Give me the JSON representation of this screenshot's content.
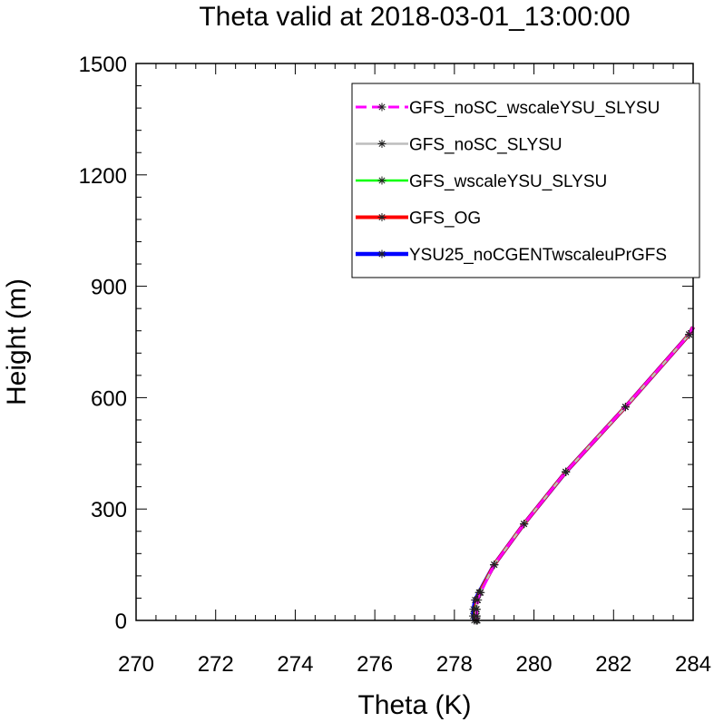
{
  "chart_data": {
    "type": "line",
    "title": "Theta valid at 2018-03-01_13:00:00",
    "xlabel": "Theta (K)",
    "ylabel": "Height (m)",
    "xlim": [
      270,
      284
    ],
    "ylim": [
      0,
      1500
    ],
    "xticks": [
      "270",
      "272",
      "274",
      "276",
      "278",
      "280",
      "282",
      "284"
    ],
    "yticks": [
      "0",
      "300",
      "600",
      "900",
      "1200",
      "1500"
    ],
    "legend_position": "top-right",
    "series": [
      {
        "name": "YSU25_noCGENTwscaleuPrGFS",
        "color": "#0000ff",
        "style": "solid",
        "width": 4.5,
        "x": [
          278.5,
          278.47,
          278.48,
          278.52,
          278.62,
          279.0,
          279.75,
          280.8,
          282.3,
          283.9,
          284.0
        ],
        "y": [
          0,
          12,
          30,
          55,
          75,
          150,
          260,
          400,
          575,
          770,
          790
        ]
      },
      {
        "name": "GFS_OG",
        "color": "#ff0000",
        "style": "solid",
        "width": 4,
        "x": [
          278.55,
          278.53,
          278.53,
          278.56,
          278.63,
          279.0,
          279.75,
          280.8,
          282.3,
          283.9,
          284.0
        ],
        "y": [
          0,
          12,
          30,
          55,
          75,
          150,
          260,
          400,
          575,
          770,
          790
        ]
      },
      {
        "name": "GFS_wscaleYSU_SLYSU",
        "color": "#00ff00",
        "style": "solid",
        "width": 2.5,
        "x": [
          278.56,
          278.54,
          278.54,
          278.57,
          278.64,
          279.0,
          279.75,
          280.8,
          282.3,
          283.9,
          284.0
        ],
        "y": [
          0,
          12,
          30,
          55,
          75,
          150,
          260,
          400,
          575,
          770,
          790
        ]
      },
      {
        "name": "GFS_noSC_SLYSU",
        "color": "#bdbdbd",
        "style": "solid",
        "width": 2.5,
        "x": [
          278.57,
          278.55,
          278.55,
          278.58,
          278.65,
          279.0,
          279.75,
          280.8,
          282.3,
          283.9,
          284.0
        ],
        "y": [
          0,
          12,
          30,
          55,
          75,
          150,
          260,
          400,
          575,
          770,
          790
        ]
      },
      {
        "name": "GFS_noSC_wscaleYSU_SLYSU",
        "color": "#ff00ff",
        "style": "dashed",
        "width": 3,
        "x": [
          278.58,
          278.56,
          278.56,
          278.59,
          278.66,
          279.0,
          279.75,
          280.8,
          282.3,
          283.9,
          284.0
        ],
        "y": [
          0,
          12,
          30,
          55,
          75,
          150,
          260,
          400,
          575,
          770,
          790
        ]
      }
    ],
    "legend_order": [
      "GFS_noSC_wscaleYSU_SLYSU",
      "GFS_noSC_SLYSU",
      "GFS_wscaleYSU_SLYSU",
      "GFS_OG",
      "YSU25_noCGENTwscaleuPrGFS"
    ]
  }
}
